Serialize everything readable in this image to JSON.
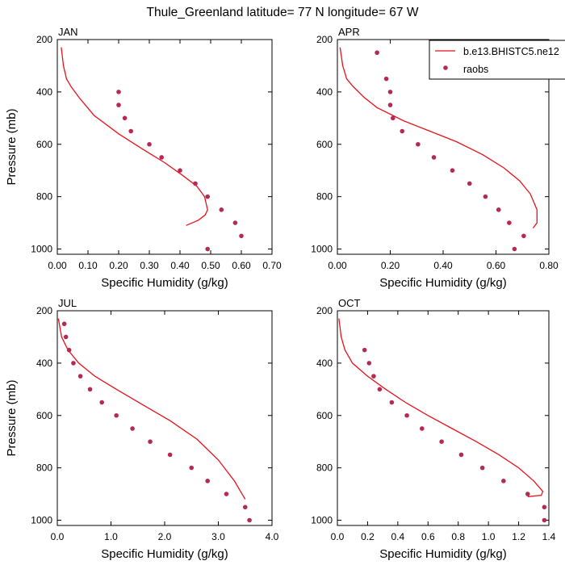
{
  "figure": {
    "title": "Thule_Greenland  latitude= 77 N longitude= 67 W"
  },
  "legend": {
    "model_label": "b.e13.BHISTC5.ne12",
    "obs_label": "raobs",
    "model_color": "#e8111a",
    "obs_color": "#b52a53",
    "position": "top-right of APR panel"
  },
  "chart_data": [
    {
      "type": "line",
      "title": "JAN",
      "xlabel": "Specific Humidity (g/kg)",
      "ylabel": "Pressure (mb)",
      "xlim": [
        0,
        0.7
      ],
      "ylim": [
        1020,
        200
      ],
      "xticks": [
        0.0,
        0.1,
        0.2,
        0.3,
        0.4,
        0.5,
        0.6,
        0.7
      ],
      "xtick_labels": [
        "0.00",
        "0.10",
        "0.20",
        "0.30",
        "0.40",
        "0.50",
        "0.60",
        "0.70"
      ],
      "yticks": [
        200,
        400,
        600,
        800,
        1000
      ],
      "ytick_labels": [
        "200",
        "400",
        "600",
        "800",
        "1000"
      ],
      "series": [
        {
          "name": "b.e13.BHISTC5.ne12",
          "kind": "line",
          "x": [
            0.013,
            0.02,
            0.03,
            0.045,
            0.07,
            0.12,
            0.2,
            0.28,
            0.35,
            0.41,
            0.455,
            0.48,
            0.49,
            0.482,
            0.46,
            0.42
          ],
          "y": [
            230,
            300,
            350,
            380,
            420,
            490,
            560,
            620,
            670,
            720,
            760,
            800,
            850,
            870,
            890,
            910
          ]
        },
        {
          "name": "raobs",
          "kind": "scatter",
          "x": [
            0.2,
            0.2,
            0.22,
            0.24,
            0.3,
            0.34,
            0.4,
            0.45,
            0.49,
            0.535,
            0.58,
            0.6,
            0.49
          ],
          "y": [
            400,
            450,
            500,
            550,
            600,
            650,
            700,
            750,
            800,
            850,
            900,
            950,
            1000
          ]
        }
      ]
    },
    {
      "type": "line",
      "title": "APR",
      "xlabel": "Specific Humidity (g/kg)",
      "ylabel": "",
      "xlim": [
        0,
        0.8
      ],
      "ylim": [
        1020,
        200
      ],
      "xticks": [
        0.0,
        0.2,
        0.4,
        0.6,
        0.8
      ],
      "xtick_labels": [
        "0.00",
        "0.20",
        "0.40",
        "0.60",
        "0.80"
      ],
      "yticks": [
        200,
        400,
        600,
        800,
        1000
      ],
      "ytick_labels": [
        "200",
        "400",
        "600",
        "800",
        "1000"
      ],
      "series": [
        {
          "name": "b.e13.BHISTC5.ne12",
          "kind": "line",
          "x": [
            0.01,
            0.02,
            0.035,
            0.06,
            0.1,
            0.15,
            0.25,
            0.35,
            0.45,
            0.55,
            0.63,
            0.69,
            0.73,
            0.755,
            0.755,
            0.74
          ],
          "y": [
            230,
            300,
            350,
            380,
            420,
            460,
            510,
            550,
            590,
            640,
            690,
            740,
            790,
            850,
            900,
            920
          ]
        },
        {
          "name": "raobs",
          "kind": "scatter",
          "x": [
            0.15,
            0.185,
            0.2,
            0.2,
            0.21,
            0.245,
            0.305,
            0.365,
            0.435,
            0.5,
            0.56,
            0.61,
            0.65,
            0.705,
            0.67
          ],
          "y": [
            250,
            350,
            400,
            450,
            500,
            550,
            600,
            650,
            700,
            750,
            800,
            850,
            900,
            950,
            1000
          ]
        }
      ]
    },
    {
      "type": "line",
      "title": "JUL",
      "xlabel": "Specific Humidity (g/kg)",
      "ylabel": "Pressure (mb)",
      "xlim": [
        0,
        4.0
      ],
      "ylim": [
        1020,
        200
      ],
      "xticks": [
        0.0,
        1.0,
        2.0,
        3.0,
        4.0
      ],
      "xtick_labels": [
        "0.0",
        "1.0",
        "2.0",
        "3.0",
        "4.0"
      ],
      "yticks": [
        200,
        400,
        600,
        800,
        1000
      ],
      "ytick_labels": [
        "200",
        "400",
        "600",
        "800",
        "1000"
      ],
      "series": [
        {
          "name": "b.e13.BHISTC5.ne12",
          "kind": "line",
          "x": [
            0.02,
            0.08,
            0.2,
            0.4,
            0.7,
            1.1,
            1.6,
            2.1,
            2.6,
            3.0,
            3.3,
            3.5
          ],
          "y": [
            230,
            300,
            350,
            400,
            450,
            500,
            560,
            620,
            690,
            770,
            850,
            920
          ]
        },
        {
          "name": "raobs",
          "kind": "scatter",
          "x": [
            0.13,
            0.16,
            0.22,
            0.3,
            0.43,
            0.61,
            0.83,
            1.1,
            1.4,
            1.73,
            2.1,
            2.5,
            2.8,
            3.15,
            3.5,
            3.58
          ],
          "y": [
            250,
            300,
            350,
            400,
            450,
            500,
            550,
            600,
            650,
            700,
            750,
            800,
            850,
            900,
            950,
            1000
          ]
        }
      ]
    },
    {
      "type": "line",
      "title": "OCT",
      "xlabel": "Specific Humidity (g/kg)",
      "ylabel": "",
      "xlim": [
        0,
        1.4
      ],
      "ylim": [
        1020,
        200
      ],
      "xticks": [
        0.0,
        0.2,
        0.4,
        0.6,
        0.8,
        1.0,
        1.2,
        1.4
      ],
      "xtick_labels": [
        "0.0",
        "0.2",
        "0.4",
        "0.6",
        "0.8",
        "1.0",
        "1.2",
        "1.4"
      ],
      "yticks": [
        200,
        400,
        600,
        800,
        1000
      ],
      "ytick_labels": [
        "200",
        "400",
        "600",
        "800",
        "1000"
      ],
      "series": [
        {
          "name": "b.e13.BHISTC5.ne12",
          "kind": "line",
          "x": [
            0.01,
            0.025,
            0.05,
            0.1,
            0.2,
            0.32,
            0.45,
            0.6,
            0.76,
            0.92,
            1.07,
            1.2,
            1.3,
            1.36,
            1.35,
            1.26
          ],
          "y": [
            230,
            300,
            350,
            400,
            450,
            500,
            550,
            600,
            650,
            700,
            750,
            800,
            850,
            890,
            905,
            910
          ]
        },
        {
          "name": "raobs",
          "kind": "scatter",
          "x": [
            0.18,
            0.21,
            0.24,
            0.28,
            0.36,
            0.46,
            0.56,
            0.69,
            0.82,
            0.96,
            1.1,
            1.26,
            1.37,
            1.37
          ],
          "y": [
            350,
            400,
            450,
            500,
            550,
            600,
            650,
            700,
            750,
            800,
            850,
            900,
            950,
            1000
          ]
        }
      ]
    }
  ]
}
